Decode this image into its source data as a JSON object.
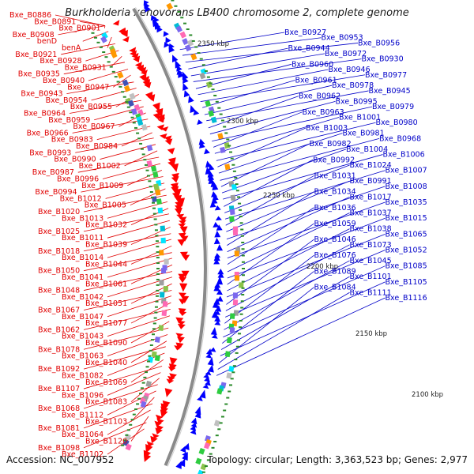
{
  "title": "Burkholderia xenovorans LB400 chromosome 2, complete genome",
  "footer": {
    "accession": "Accession: NC_007952",
    "stats": "Topology: circular; Length: 3,363,523 bp; Genes: 2,977"
  },
  "colors": {
    "left_labels": "#e00000",
    "right_labels": "#0000c8",
    "backbone": "#8a8a8a",
    "forward_features": "#ff0000",
    "reverse_features": "#0000ff",
    "ticks": "#2a8a2a"
  },
  "scale_ticks": [
    "2350 kbp",
    "2300 kbp",
    "2250 kbp",
    "2200 kbp",
    "2150 kbp",
    "2100 kbp"
  ],
  "left_labels": [
    "Bxe_B0886",
    "Bxe_B0891",
    "Bxe_B0901",
    "Bxe_B0908",
    "benD",
    "benA",
    "Bxe_B0921",
    "Bxe_B0928",
    "Bxe_B0931",
    "Bxe_B0935",
    "Bxe_B0940",
    "Bxe_B0947",
    "Bxe_B0943",
    "Bxe_B0954",
    "Bxe_B0955",
    "Bxe_B0964",
    "Bxe_B0959",
    "Bxe_B0967",
    "Bxe_B0966",
    "Bxe_B0983",
    "Bxe_B0984",
    "Bxe_B0993",
    "Bxe_B0990",
    "Bxe_B1002",
    "Bxe_B0987",
    "Bxe_B0996",
    "Bxe_B1009",
    "Bxe_B0994",
    "Bxe_B1012",
    "Bxe_B1005",
    "Bxe_B1020",
    "Bxe_B1013",
    "Bxe_B1032",
    "Bxe_B1025",
    "Bxe_B1011",
    "Bxe_B1039",
    "Bxe_B1018",
    "Bxe_B1014",
    "Bxe_B1044",
    "Bxe_B1050",
    "Bxe_B1041",
    "Bxe_B1061",
    "Bxe_B1048",
    "Bxe_B1042",
    "Bxe_B1051",
    "Bxe_B1067",
    "Bxe_B1047",
    "Bxe_B1077",
    "Bxe_B1062",
    "Bxe_B1043",
    "Bxe_B1090",
    "Bxe_B1078",
    "Bxe_B1063",
    "Bxe_B1040",
    "Bxe_B1092",
    "Bxe_B1082",
    "Bxe_B1069",
    "Bxe_B1107",
    "Bxe_B1096",
    "Bxe_B1083",
    "Bxe_B1068",
    "Bxe_B1112",
    "Bxe_B1103",
    "Bxe_B1081",
    "Bxe_B1064",
    "Bxe_B1120",
    "Bxe_B1098",
    "Bxe_B1102"
  ],
  "right_labels": [
    "Bxe_B0927",
    "Bxe_B0953",
    "Bxe_B0956",
    "Bxe_B0944",
    "Bxe_B0972",
    "Bxe_B0930",
    "Bxe_B0960",
    "Bxe_B0946",
    "Bxe_B0977",
    "Bxe_B0961",
    "Bxe_B0978",
    "Bxe_B0945",
    "Bxe_B0962",
    "Bxe_B0995",
    "Bxe_B0979",
    "Bxe_B0963",
    "Bxe_B1001",
    "Bxe_B0980",
    "Bxe_B1003",
    "Bxe_B0981",
    "Bxe_B0968",
    "Bxe_B0982",
    "Bxe_B1004",
    "Bxe_B1006",
    "Bxe_B0992",
    "Bxe_B1024",
    "Bxe_B1007",
    "Bxe_B1031",
    "Bxe_B0991",
    "Bxe_B1008",
    "Bxe_B1034",
    "Bxe_B1017",
    "Bxe_B1035",
    "Bxe_B1036",
    "Bxe_B1037",
    "Bxe_B1015",
    "Bxe_B1059",
    "Bxe_B1038",
    "Bxe_B1065",
    "Bxe_B1046",
    "Bxe_B1073",
    "Bxe_B1052",
    "Bxe_B1076",
    "Bxe_B1045",
    "Bxe_B1085",
    "Bxe_B1089",
    "Bxe_B1101",
    "Bxe_B1105",
    "Bxe_B1084",
    "Bxe_B1111",
    "Bxe_B1116"
  ]
}
